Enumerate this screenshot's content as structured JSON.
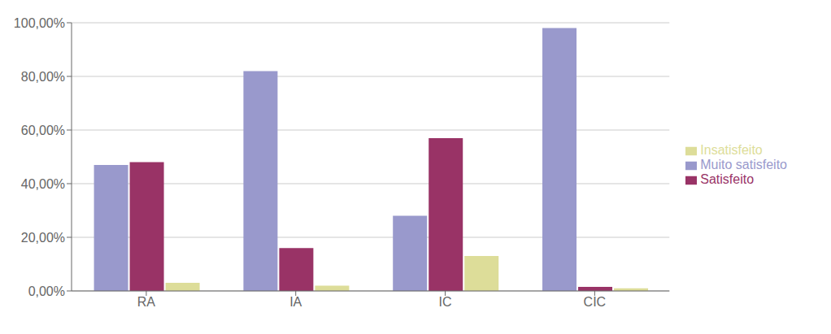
{
  "chart_data": {
    "type": "bar",
    "categories": [
      "RA",
      "IA",
      "IC",
      "CIC"
    ],
    "series": [
      {
        "name": "Muito satisfeito",
        "color": "#9999CC",
        "values": [
          47.0,
          82.0,
          28.0,
          98.0
        ]
      },
      {
        "name": "Satisfeito",
        "color": "#993366",
        "values": [
          48.0,
          16.0,
          57.0,
          1.5
        ]
      },
      {
        "name": "Insatisfeito",
        "color": "#DDDD99",
        "values": [
          3.0,
          2.0,
          13.0,
          1.0
        ]
      }
    ],
    "ylim": [
      0,
      100
    ],
    "yticks": [
      {
        "value": 0,
        "label": "0,00%"
      },
      {
        "value": 20,
        "label": "20,00%"
      },
      {
        "value": 40,
        "label": "40,00%"
      },
      {
        "value": 60,
        "label": "60,00%"
      },
      {
        "value": 80,
        "label": "80,00%"
      },
      {
        "value": 100,
        "label": "100,00%"
      }
    ],
    "grid": true,
    "legend": "right"
  }
}
